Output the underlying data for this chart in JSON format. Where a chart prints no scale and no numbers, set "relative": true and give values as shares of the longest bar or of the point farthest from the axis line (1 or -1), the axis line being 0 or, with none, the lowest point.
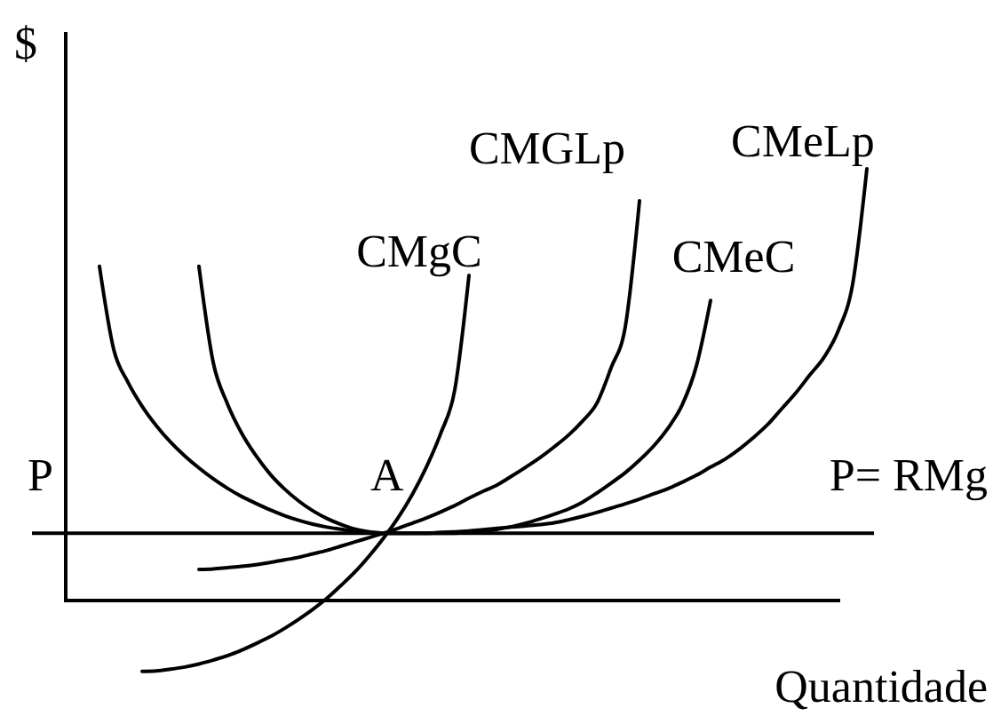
{
  "chart_data": {
    "type": "line",
    "relative": true,
    "xlabel": "Quantidade",
    "ylabel": "$",
    "categories": [
      null,
      null,
      null,
      null,
      null,
      null,
      null,
      null,
      null,
      null,
      null,
      null,
      null,
      null,
      null,
      null,
      null,
      null,
      null,
      null,
      null,
      null,
      null,
      null,
      null,
      null,
      null,
      null,
      null,
      null,
      null,
      null,
      null,
      null,
      null,
      null,
      null,
      null,
      null,
      null,
      null,
      null,
      null,
      null,
      null,
      null,
      null,
      null,
      null,
      null,
      null,
      null,
      null,
      null,
      null,
      null,
      null
    ],
    "series": [
      {
        "name": "CMgC",
        "color": "#000000",
        "values": [
          null,
          null,
          null,
          null,
          null,
          -0.164,
          -0.163,
          -0.159,
          -0.154,
          -0.147,
          -0.138,
          -0.128,
          -0.115,
          -0.1,
          -0.084,
          -0.065,
          -0.044,
          -0.021,
          0.005,
          0.035,
          0.067,
          0.104,
          0.145,
          0.191,
          0.245,
          0.309,
          0.386,
          0.488,
          0.753,
          null,
          null,
          null,
          null,
          null,
          null,
          null,
          null,
          null,
          null,
          null,
          null,
          null,
          null,
          null,
          null,
          null,
          null,
          null,
          null,
          null,
          null,
          null,
          null,
          null,
          null,
          null,
          null
        ]
      },
      {
        "name": "CMGLp",
        "color": "#000000",
        "values": [
          null,
          null,
          null,
          null,
          null,
          null,
          null,
          null,
          null,
          0.072,
          0.073,
          0.076,
          0.079,
          0.083,
          0.088,
          0.094,
          0.1,
          0.108,
          0.116,
          0.126,
          0.136,
          0.146,
          0.156,
          0.167,
          0.179,
          0.191,
          0.205,
          0.22,
          0.237,
          0.253,
          0.268,
          0.288,
          0.309,
          0.331,
          0.356,
          0.383,
          0.416,
          0.457,
          0.539,
          0.634,
          0.926,
          null,
          null,
          null,
          null,
          null,
          null,
          null,
          null,
          null,
          null,
          null,
          null,
          null,
          null,
          null,
          null
        ]
      },
      {
        "name": "CMeC",
        "color": "#000000",
        "values": [
          null,
          null,
          null,
          null,
          null,
          null,
          null,
          null,
          null,
          0.774,
          0.552,
          0.456,
          0.388,
          0.336,
          0.293,
          0.259,
          0.231,
          0.208,
          0.19,
          0.176,
          0.165,
          0.159,
          0.156,
          0.156,
          0.156,
          0.156,
          0.156,
          0.156,
          0.158,
          0.16,
          0.165,
          0.171,
          0.179,
          0.189,
          0.2,
          0.212,
          0.228,
          0.249,
          0.272,
          0.296,
          0.325,
          0.358,
          0.399,
          0.453,
          0.543,
          0.695,
          null,
          null,
          null,
          null,
          null,
          null,
          null,
          null,
          null,
          null,
          null
        ]
      },
      {
        "name": "CMeLp",
        "color": "#000000",
        "values": [
          null,
          null,
          0.774,
          0.582,
          0.506,
          0.45,
          0.405,
          0.367,
          0.335,
          0.307,
          0.282,
          0.26,
          0.241,
          0.225,
          0.21,
          0.197,
          0.186,
          0.177,
          0.17,
          0.165,
          0.16,
          0.158,
          0.156,
          0.156,
          0.156,
          0.156,
          0.158,
          0.159,
          0.161,
          0.164,
          0.167,
          0.17,
          0.173,
          0.176,
          0.18,
          0.187,
          0.195,
          0.204,
          0.214,
          0.224,
          0.235,
          0.247,
          0.259,
          0.274,
          0.29,
          0.309,
          0.327,
          0.35,
          0.377,
          0.407,
          0.444,
          0.481,
          0.523,
          0.564,
          0.626,
          0.733,
          1
        ]
      }
    ],
    "ref_lines": [
      {
        "axis": "y",
        "value": 0.156,
        "label": "P= RMg"
      }
    ],
    "annotations": [
      {
        "text": "P",
        "y": 0.156
      },
      {
        "text": "A",
        "y": 0.156
      }
    ]
  }
}
